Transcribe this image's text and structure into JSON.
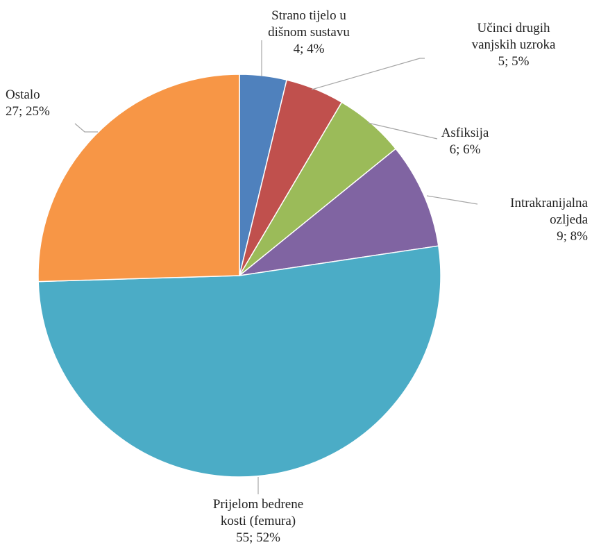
{
  "chart_data": {
    "type": "pie",
    "title": "",
    "start_angle_deg": 0,
    "direction": "clockwise",
    "slices": [
      {
        "label_lines": [
          "Strano tijelo u",
          "dišnom sustavu",
          "4; 4%"
        ],
        "value": 4,
        "percent": 4,
        "color": "#4f81bd"
      },
      {
        "label_lines": [
          "Učinci drugih",
          "vanjskih uzroka",
          "5; 5%"
        ],
        "value": 5,
        "percent": 5,
        "color": "#c0504d"
      },
      {
        "label_lines": [
          "Asfiksija",
          "6; 6%"
        ],
        "value": 6,
        "percent": 6,
        "color": "#9bbb59"
      },
      {
        "label_lines": [
          "Intrakranijalna",
          "ozljeda",
          "9; 8%"
        ],
        "value": 9,
        "percent": 8,
        "color": "#8064a2"
      },
      {
        "label_lines": [
          "Prijelom bedrene",
          "kosti (femura)",
          "55; 52%"
        ],
        "value": 55,
        "percent": 52,
        "color": "#4bacc6"
      },
      {
        "label_lines": [
          "Ostalo",
          "27; 25%"
        ],
        "value": 27,
        "percent": 25,
        "color": "#f79646"
      }
    ]
  }
}
